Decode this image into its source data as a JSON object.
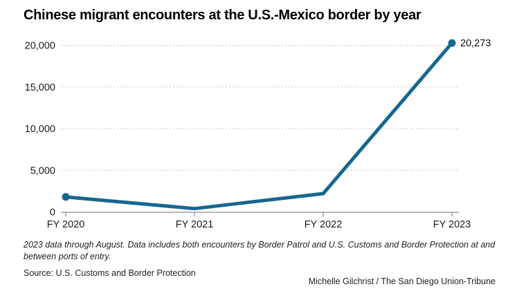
{
  "header": {
    "title": "Chinese migrant encounters at the U.S.-Mexico border by year"
  },
  "chart_data": {
    "type": "line",
    "title": "Chinese migrant encounters at the U.S.-Mexico border by year",
    "categories": [
      "FY 2020",
      "FY 2021",
      "FY 2022",
      "FY 2023"
    ],
    "values": [
      1800,
      400,
      2200,
      20273
    ],
    "y_ticks": [
      0,
      5000,
      10000,
      15000,
      20000
    ],
    "y_tick_labels": [
      "0",
      "5,000",
      "10,000",
      "15,000",
      "20,000"
    ],
    "ylim": [
      0,
      20000
    ],
    "xlabel": "",
    "ylabel": "",
    "grid": "horizontal-dotted",
    "legend": "none",
    "marker_indices": [
      0,
      3
    ],
    "end_label": {
      "index": 3,
      "text": "20,273"
    },
    "colors": {
      "line": "#16678f",
      "marker": "#16678f",
      "axis": "#8c8c8c",
      "grid": "#b3b3b3",
      "tick_text": "#1a1a1a"
    }
  },
  "footer": {
    "note": "2023 data through August. Data includes both encounters by Border Patrol and U.S. Customs and Border Protection at and between ports of entry.",
    "source": "Source: U.S. Customs and Border Protection",
    "credit": "Michelle Gilchrist / The San Diego Union-Tribune"
  }
}
